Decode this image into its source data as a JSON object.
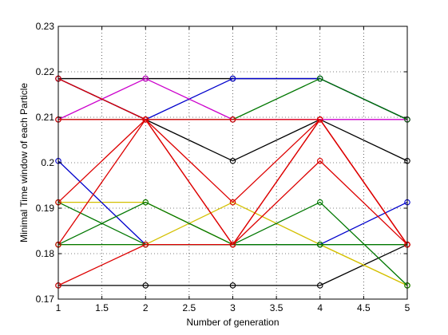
{
  "chart_data": {
    "type": "line",
    "title": "",
    "xlabel": "Number of generation",
    "ylabel": "Minimal Time window of each Particle",
    "xlim": [
      1,
      5
    ],
    "ylim": [
      0.17,
      0.23
    ],
    "grid": true,
    "legend": "none",
    "x_ticks": [
      "1",
      "1.5",
      "2",
      "2.5",
      "3",
      "3.5",
      "4",
      "4.5",
      "5"
    ],
    "y_ticks": [
      "0.17",
      "0.18",
      "0.19",
      "0.2",
      "0.21",
      "0.22",
      "0.23"
    ],
    "x": [
      1,
      2,
      3,
      4,
      5
    ],
    "series": [
      {
        "color": "#000000",
        "values": [
          0.173,
          0.173,
          0.173,
          0.173,
          0.182
        ]
      },
      {
        "color": "#000000",
        "values": [
          0.2185,
          0.2185,
          0.2185,
          0.2185,
          0.2095
        ]
      },
      {
        "color": "#000000",
        "values": [
          0.2185,
          0.2095,
          0.2004,
          0.2095,
          0.2004
        ]
      },
      {
        "color": "#d4c000",
        "values": [
          0.1913,
          0.1913,
          0.182,
          0.182,
          0.173
        ]
      },
      {
        "color": "#d4c000",
        "values": [
          0.182,
          0.182,
          0.1913,
          0.182,
          0.173
        ]
      },
      {
        "color": "#0000cc",
        "values": [
          0.2004,
          0.182,
          0.182,
          0.182,
          0.1913
        ]
      },
      {
        "color": "#0000cc",
        "values": [
          0.2185,
          0.2095,
          0.2185,
          0.2185,
          0.2095
        ]
      },
      {
        "color": "#cc00cc",
        "values": [
          0.2095,
          0.2185,
          0.2095,
          0.2095,
          0.2095
        ]
      },
      {
        "color": "#cc00cc",
        "values": [
          0.2095,
          0.2095,
          0.2095,
          0.2095,
          0.2095
        ]
      },
      {
        "color": "#007700",
        "values": [
          0.1913,
          0.182,
          0.182,
          0.1913,
          0.173
        ]
      },
      {
        "color": "#007700",
        "values": [
          0.182,
          0.182,
          0.182,
          0.182,
          0.182
        ]
      },
      {
        "color": "#007700",
        "values": [
          0.2095,
          0.2095,
          0.2095,
          0.2185,
          0.2095
        ]
      },
      {
        "color": "#007700",
        "values": [
          0.182,
          0.1913,
          0.182,
          0.182,
          0.182
        ]
      },
      {
        "color": "#dd0000",
        "values": [
          0.173,
          0.182,
          0.182,
          0.2004,
          0.182
        ]
      },
      {
        "color": "#dd0000",
        "values": [
          0.2185,
          0.2095,
          0.182,
          0.2095,
          0.182
        ]
      },
      {
        "color": "#dd0000",
        "values": [
          0.1913,
          0.2095,
          0.1913,
          0.2095,
          0.182
        ]
      },
      {
        "color": "#dd0000",
        "values": [
          0.182,
          0.2095,
          0.2095,
          0.2095,
          0.182
        ]
      },
      {
        "color": "#dd0000",
        "values": [
          0.2095,
          0.2095,
          0.182,
          0.2095,
          0.182
        ]
      }
    ]
  }
}
